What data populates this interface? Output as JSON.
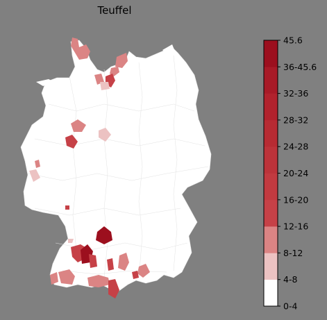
{
  "title": "Teuffel",
  "legend": {
    "bins": [
      {
        "label": "0-4",
        "color": "#ffffff"
      },
      {
        "label": "4-8",
        "color": "#ffffff"
      },
      {
        "label": "8-12",
        "color": "#ecc2c2"
      },
      {
        "label": "12-16",
        "color": "#db8484"
      },
      {
        "label": "16-20",
        "color": "#c64147"
      },
      {
        "label": "20-24",
        "color": "#c23a40"
      },
      {
        "label": "24-28",
        "color": "#bc333a"
      },
      {
        "label": "28-32",
        "color": "#b72b33"
      },
      {
        "label": "32-36",
        "color": "#b1222d"
      },
      {
        "label": "36-45.6",
        "color": "#a81a27"
      },
      {
        "label": "45.6",
        "color": "#9c0f1e"
      }
    ]
  },
  "colors": {
    "background": "#808080",
    "land": "#ffffff",
    "border": "#d8d8d8"
  }
}
